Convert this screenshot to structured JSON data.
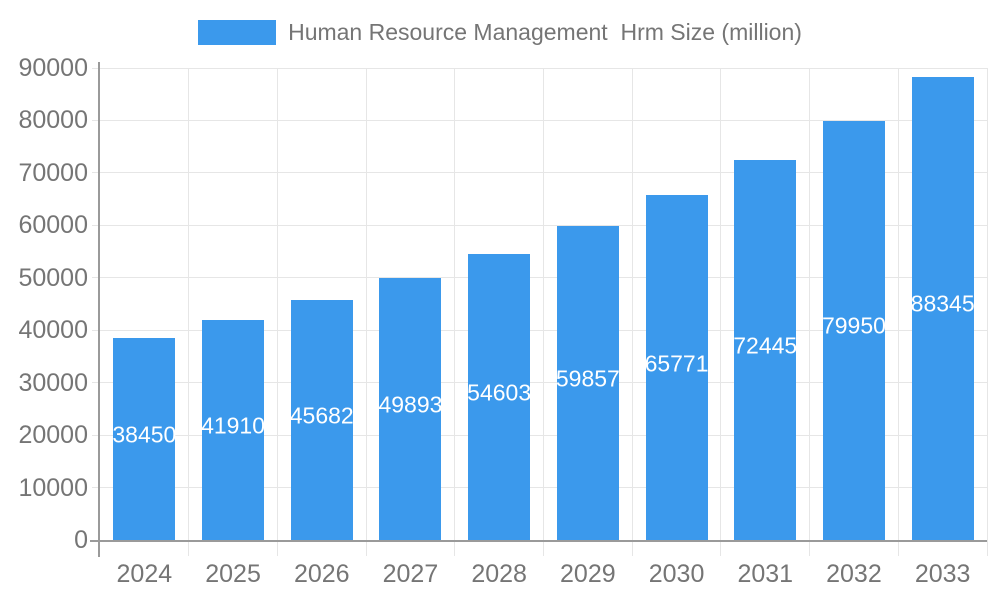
{
  "chart_data": {
    "type": "bar",
    "categories": [
      "2024",
      "2025",
      "2026",
      "2027",
      "2028",
      "2029",
      "2030",
      "2031",
      "2032",
      "2033"
    ],
    "series": [
      {
        "name": "Human Resource Management  Hrm Size (million)",
        "values": [
          38450,
          41910,
          45682,
          49893,
          54603,
          59857,
          65771,
          72445,
          79950,
          88345
        ]
      }
    ],
    "title": "",
    "xlabel": "",
    "ylabel": "",
    "ylim": [
      0,
      90000
    ],
    "ytick_step": 10000,
    "ytick_labels": [
      "0",
      "10000",
      "20000",
      "30000",
      "40000",
      "50000",
      "60000",
      "70000",
      "80000",
      "90000"
    ],
    "data_labels": "inside-center",
    "grid": true,
    "legend_position": "top",
    "colors": {
      "bar": "#3B99EC",
      "data_label": "#FFFFFF",
      "axis_text": "#757575",
      "grid_line": "#E6E6E6",
      "axis_line": "#9A9A9A",
      "background": "#FFFFFF"
    }
  }
}
